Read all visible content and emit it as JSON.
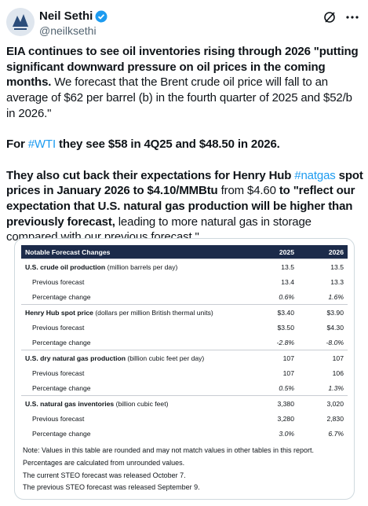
{
  "post": {
    "author": "Neil Sethi",
    "handle": "@neilksethi",
    "paragraphs": [
      {
        "segments": [
          {
            "text": "EIA continues to see oil inventories rising through 2026 \"putting significant downward pressure on oil prices in the coming months.",
            "style": "bold"
          },
          {
            "text": " We forecast that the Brent crude oil price will fall to an average of $62 per barrel (b) in the fourth quarter of 2025 and $52/b in 2026.\"",
            "style": "normal"
          }
        ]
      },
      {
        "segments": [
          {
            "text": "For ",
            "style": "bold"
          },
          {
            "text": "#WTI",
            "style": "hashtag"
          },
          {
            "text": " they see $58 in 4Q25 and $48.50 in 2026.",
            "style": "bold"
          }
        ]
      },
      {
        "segments": [
          {
            "text": "They also cut back their expectations for Henry Hub ",
            "style": "bold"
          },
          {
            "text": "#natgas",
            "style": "hashtag"
          },
          {
            "text": " spot prices in January 2026 to $4.10/MMBtu",
            "style": "bold"
          },
          {
            "text": " from $4.60 ",
            "style": "normal"
          },
          {
            "text": "to \"reflect our expectation that U.S. natural gas production will be higher than previously forecast,",
            "style": "bold"
          },
          {
            "text": " leading to more natural gas in storage compared with our previous forecast.\"",
            "style": "normal"
          }
        ]
      }
    ]
  },
  "table": {
    "header": [
      "Notable Forecast Changes",
      "2025",
      "2026"
    ],
    "sections": [
      {
        "title": "U.S. crude oil production",
        "unit": "(million barrels per day)",
        "values": [
          "13.5",
          "13.5"
        ],
        "rows": [
          {
            "label": "Previous forecast",
            "values": [
              "13.4",
              "13.3"
            ]
          },
          {
            "label": "Percentage change",
            "values": [
              "0.6%",
              "1.6%"
            ]
          }
        ]
      },
      {
        "title": "Henry Hub spot price",
        "unit": "(dollars per million British thermal units)",
        "values": [
          "$3.40",
          "$3.90"
        ],
        "rows": [
          {
            "label": "Previous forecast",
            "values": [
              "$3.50",
              "$4.30"
            ]
          },
          {
            "label": "Percentage change",
            "values": [
              "-2.8%",
              "-8.0%"
            ]
          }
        ]
      },
      {
        "title": "U.S. dry natural gas production",
        "unit": "(billion cubic feet per day)",
        "values": [
          "107",
          "107"
        ],
        "rows": [
          {
            "label": "Previous forecast",
            "values": [
              "107",
              "106"
            ]
          },
          {
            "label": "Percentage change",
            "values": [
              "0.5%",
              "1.3%"
            ]
          }
        ]
      },
      {
        "title": "U.S. natural gas inventories",
        "unit": "(billion cubic feet)",
        "values": [
          "3,380",
          "3,020"
        ],
        "rows": [
          {
            "label": "Previous forecast",
            "values": [
              "3,280",
              "2,830"
            ]
          },
          {
            "label": "Percentage change",
            "values": [
              "3.0%",
              "6.7%"
            ]
          }
        ]
      }
    ],
    "notes": [
      "Note: Values in this table are rounded and may not match values in other tables in this report. Percentages are calculated from unrounded values.",
      "The current STEO forecast was released October 7.",
      "The previous STEO forecast was released September 9."
    ]
  }
}
